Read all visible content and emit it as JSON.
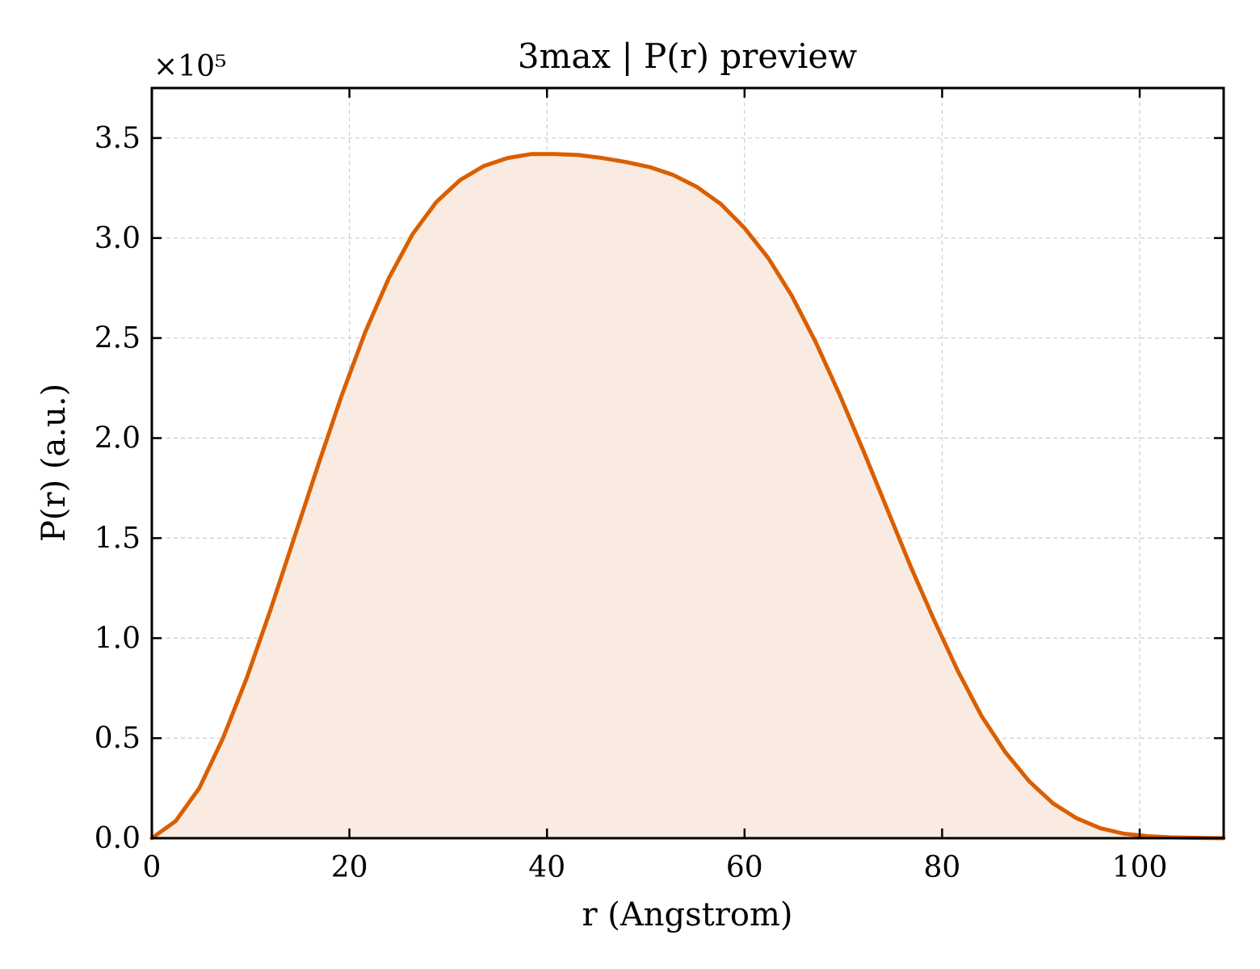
{
  "chart_data": {
    "type": "line",
    "title": "3max | P(r) preview",
    "xlabel": "r (Angstrom)",
    "ylabel": "P(r) (a.u.)",
    "y_multiplier_label": "×10⁵",
    "y_scale": 100000,
    "xlim": [
      0,
      108.5
    ],
    "ylim": [
      0,
      3.75
    ],
    "xticks": [
      0,
      20,
      40,
      60,
      80,
      100
    ],
    "xtick_labels": [
      "0",
      "20",
      "40",
      "60",
      "80",
      "100"
    ],
    "yticks": [
      0,
      0.5,
      1.0,
      1.5,
      2.0,
      2.5,
      3.0,
      3.5
    ],
    "ytick_labels": [
      "0.0",
      "0.5",
      "1.0",
      "1.5",
      "2.0",
      "2.5",
      "3.0",
      "3.5"
    ],
    "grid": true,
    "fill_under": true,
    "colors": {
      "line": "#d95f02",
      "fill": "#f9ebe1"
    },
    "series": [
      {
        "x": [
          0,
          2.4,
          4.8,
          7.2,
          9.6,
          12,
          14.4,
          16.8,
          19.2,
          21.6,
          24,
          26.4,
          28.8,
          31.2,
          33.6,
          36,
          38.4,
          40.8,
          43.2,
          45.6,
          48,
          50.4,
          52.8,
          55.2,
          57.6,
          60,
          62.4,
          64.8,
          67.2,
          69.6,
          72,
          74.4,
          76.8,
          79.2,
          81.6,
          84,
          86.4,
          88.8,
          91.2,
          93.6,
          96,
          98.4,
          100.8,
          103.2,
          105.6,
          108.5
        ],
        "y": [
          0.0,
          0.085,
          0.25,
          0.5,
          0.8,
          1.14,
          1.5,
          1.86,
          2.21,
          2.53,
          2.8,
          3.02,
          3.18,
          3.29,
          3.36,
          3.4,
          3.42,
          3.42,
          3.415,
          3.4,
          3.38,
          3.355,
          3.315,
          3.255,
          3.17,
          3.05,
          2.9,
          2.71,
          2.48,
          2.22,
          1.94,
          1.65,
          1.36,
          1.09,
          0.835,
          0.61,
          0.43,
          0.285,
          0.175,
          0.1,
          0.05,
          0.022,
          0.01,
          0.004,
          0.002,
          0.0
        ]
      }
    ]
  }
}
